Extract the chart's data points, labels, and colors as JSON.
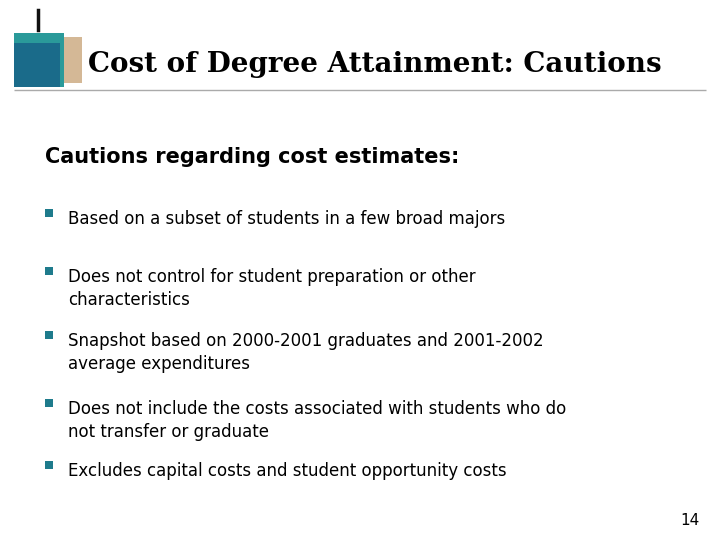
{
  "title": "Cost of Degree Attainment: Cautions",
  "subtitle": "Cautions regarding cost estimates:",
  "bullets": [
    "Based on a subset of students in a few broad majors",
    "Does not control for student preparation or other\ncharacteristics",
    "Snapshot based on 2000-2001 graduates and 2001-2002\naverage expenditures",
    "Does not include the costs associated with students who do\nnot transfer or graduate",
    "Excludes capital costs and student opportunity costs"
  ],
  "bg_color": "#ffffff",
  "title_color": "#000000",
  "subtitle_color": "#000000",
  "bullet_text_color": "#000000",
  "bullet_square_color": "#1e7b8c",
  "title_box_teal_front": "#1a6b8a",
  "title_box_teal_back": "#2a9a9a",
  "title_box_tan": "#d4b896",
  "title_line_color": "#aaaaaa",
  "page_number": "14",
  "page_num_color": "#000000",
  "title_fontsize": 20,
  "subtitle_fontsize": 15,
  "bullet_fontsize": 12
}
